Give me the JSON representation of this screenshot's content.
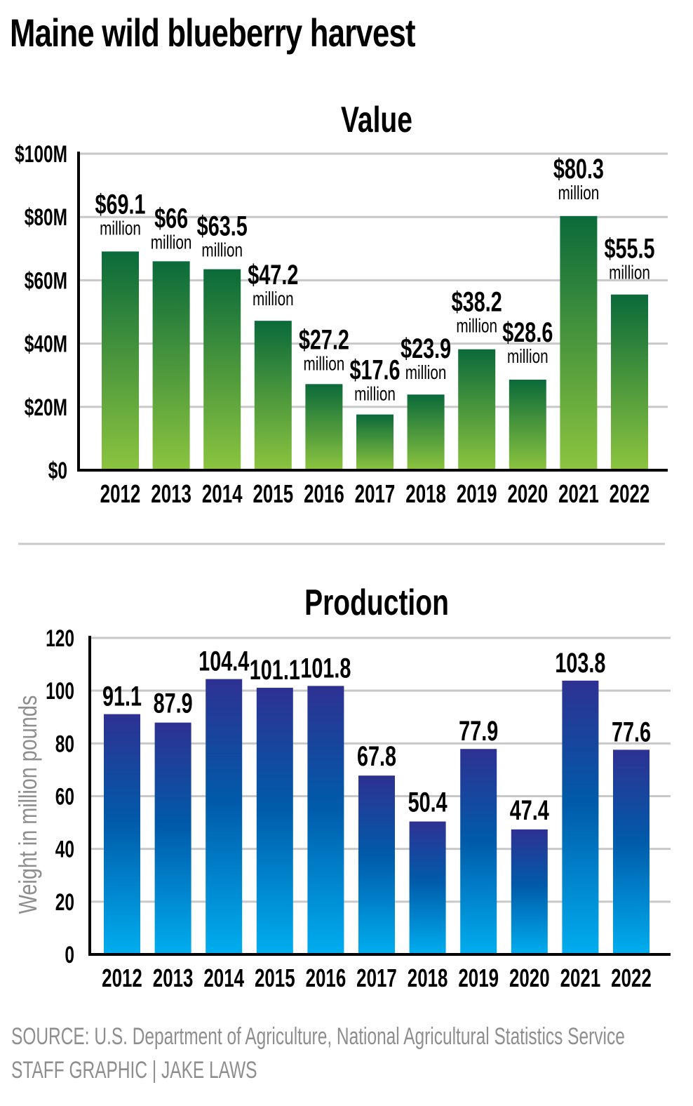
{
  "header": {
    "title": "Maine wild blueberry harvest"
  },
  "footer": {
    "source": "SOURCE: U.S. Department of Agriculture, National Agricultural Statistics Service",
    "credit": "STAFF GRAPHIC | JAKE LAWS"
  },
  "colors": {
    "green_top": "#0a6a3a",
    "green_bottom": "#8cc43f",
    "blue_top": "#2e3192",
    "blue_mid": "#005baa",
    "blue_bottom": "#00aeef",
    "grid": "#c8c8c8",
    "axis": "#000000",
    "muted_text": "#8e8e8e"
  },
  "chart_data": [
    {
      "type": "bar",
      "title": "Value",
      "xlabel": "",
      "ylabel": "",
      "categories": [
        "2012",
        "2013",
        "2014",
        "2015",
        "2016",
        "2017",
        "2018",
        "2019",
        "2020",
        "2021",
        "2022"
      ],
      "values": [
        69.1,
        66,
        63.5,
        47.2,
        27.2,
        17.6,
        23.9,
        38.2,
        28.6,
        80.3,
        55.5
      ],
      "value_labels": [
        "$69.1",
        "$66",
        "$63.5",
        "$47.2",
        "$27.2",
        "$17.6",
        "$23.9",
        "$38.2",
        "$28.6",
        "$80.3",
        "$55.5"
      ],
      "unit_label": "million",
      "ylim": [
        0,
        100
      ],
      "yticks": [
        0,
        20,
        40,
        60,
        80,
        100
      ],
      "ytick_labels": [
        "$0",
        "$20M",
        "$40M",
        "$60M",
        "$80M",
        "$100M"
      ],
      "grid": true,
      "legend": "none"
    },
    {
      "type": "bar",
      "title": "Production",
      "xlabel": "",
      "ylabel": "Weight in million pounds",
      "categories": [
        "2012",
        "2013",
        "2014",
        "2015",
        "2016",
        "2017",
        "2018",
        "2019",
        "2020",
        "2021",
        "2022"
      ],
      "values": [
        91.1,
        87.9,
        104.4,
        101.1,
        101.8,
        67.8,
        50.4,
        77.9,
        47.4,
        103.8,
        77.6
      ],
      "value_labels": [
        "91.1",
        "87.9",
        "104.4",
        "101.1",
        "101.8",
        "67.8",
        "50.4",
        "77.9",
        "47.4",
        "103.8",
        "77.6"
      ],
      "ylim": [
        0,
        120
      ],
      "yticks": [
        0,
        20,
        40,
        60,
        80,
        100,
        120
      ],
      "ytick_labels": [
        "0",
        "20",
        "40",
        "60",
        "80",
        "100",
        "120"
      ],
      "grid": true,
      "legend": "none"
    }
  ]
}
